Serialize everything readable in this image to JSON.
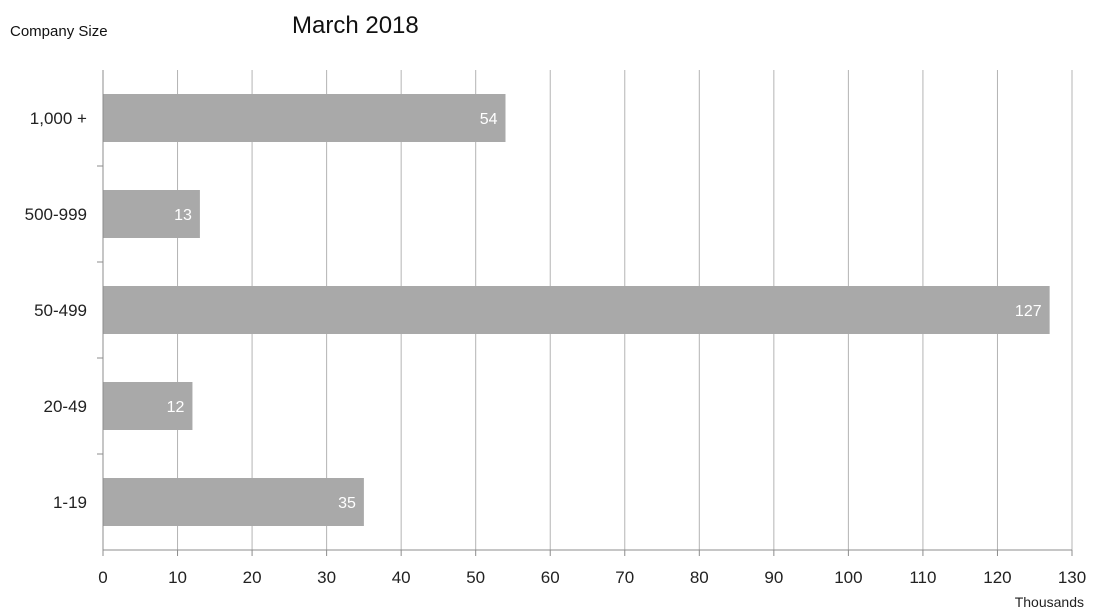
{
  "chart_data": {
    "type": "bar",
    "orientation": "horizontal",
    "title": "March 2018",
    "ylabel": "Company Size",
    "xlabel": "Thousands",
    "categories": [
      "1,000 +",
      "500-999",
      "50-499",
      "20-49",
      "1-19"
    ],
    "values": [
      54,
      13,
      127,
      12,
      35
    ],
    "data_labels": [
      "54",
      "13",
      "127",
      "12",
      "35"
    ],
    "xlim": [
      0,
      130
    ],
    "xticks": [
      0,
      10,
      20,
      30,
      40,
      50,
      60,
      70,
      80,
      90,
      100,
      110,
      120,
      130
    ],
    "grid": "vertical",
    "legend": "none",
    "colors": {
      "bar": "#a9a9a9",
      "grid": "#b4b4b4",
      "axis": "#8c8c8c"
    }
  }
}
